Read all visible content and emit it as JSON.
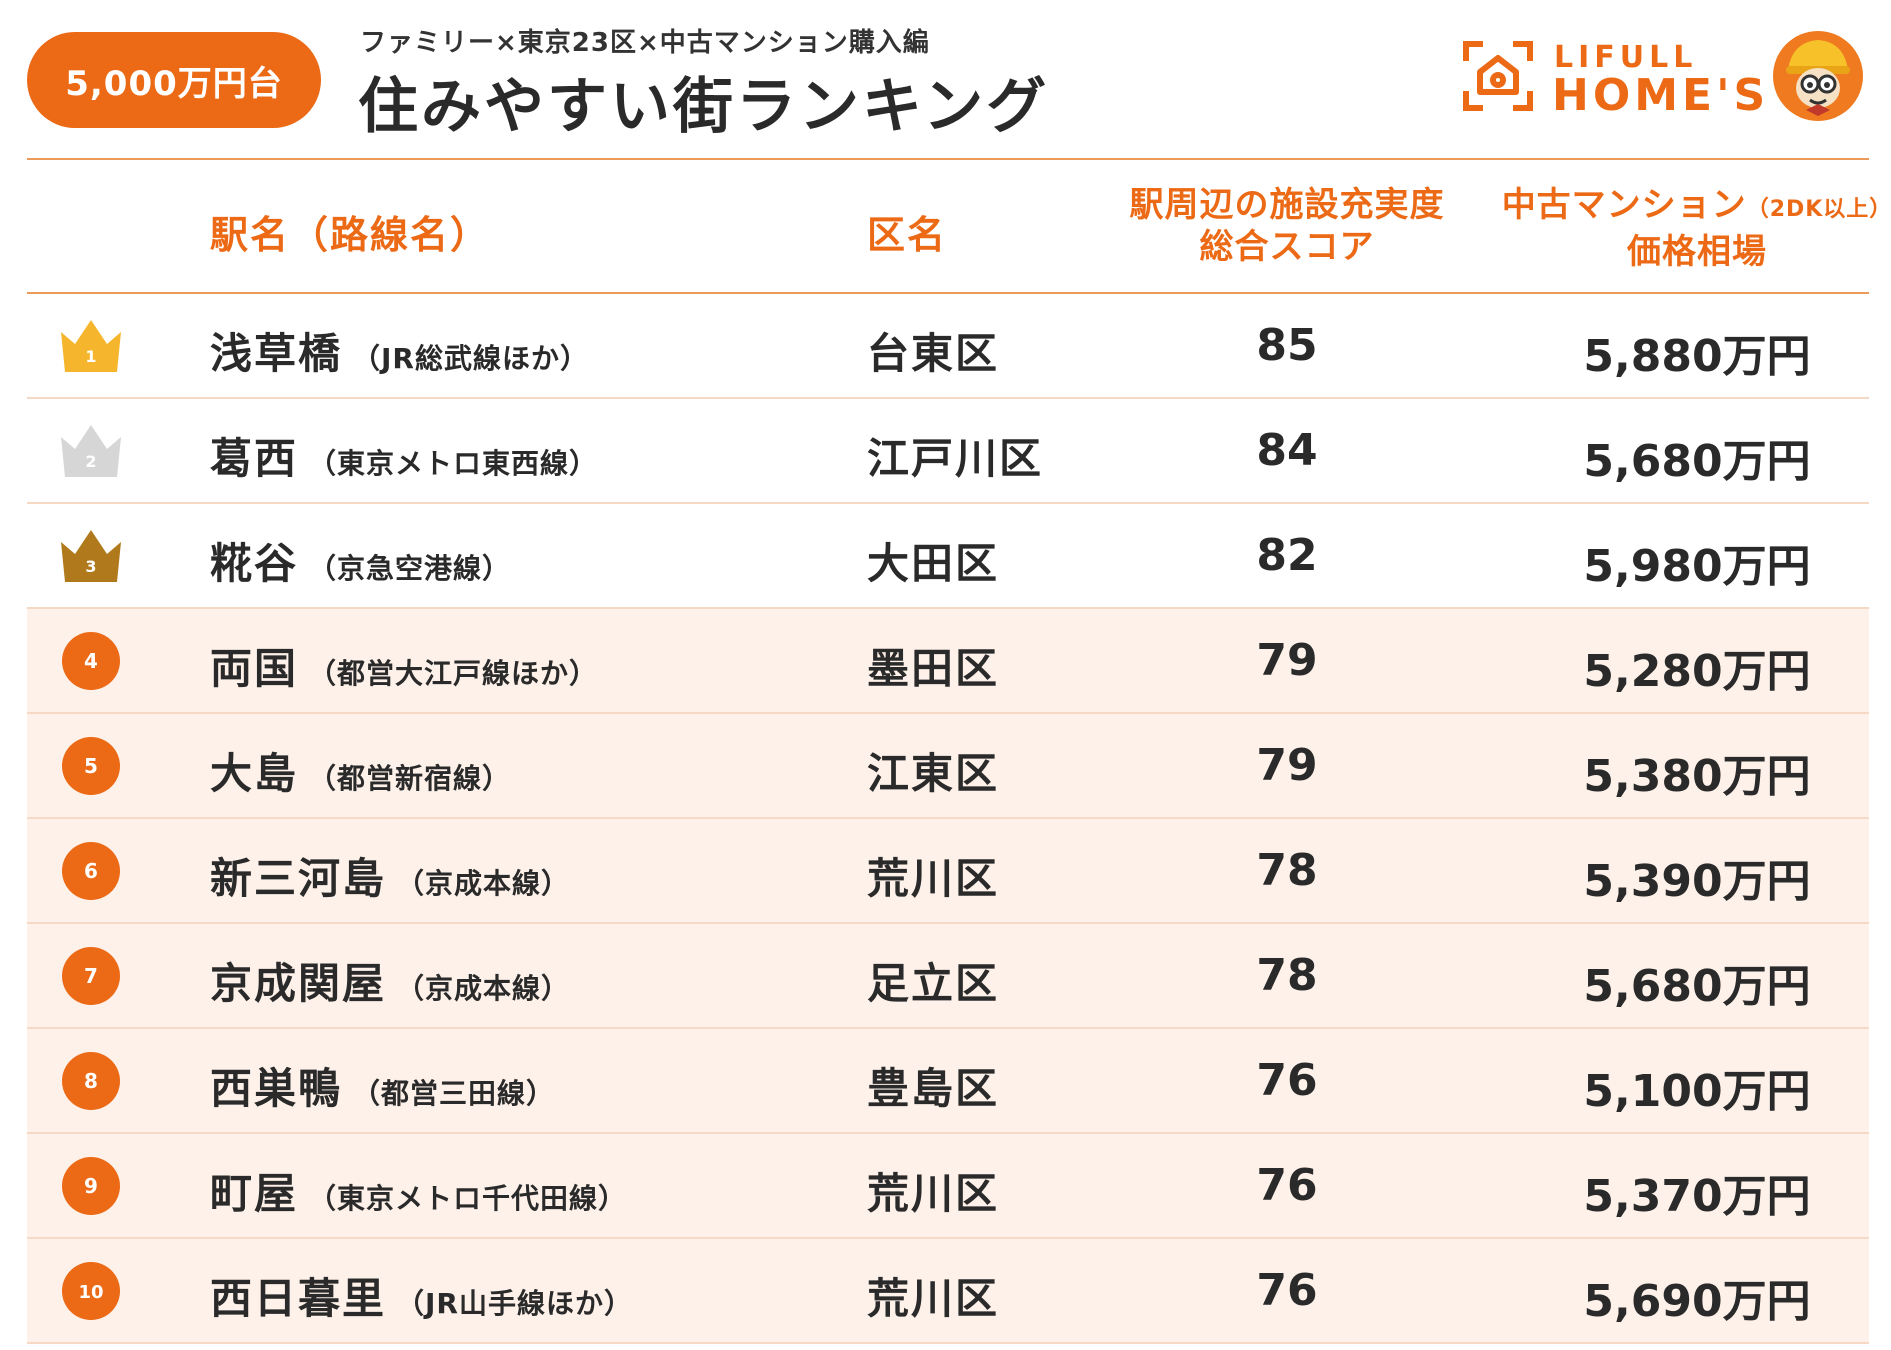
{
  "header": {
    "badge": "5,000万円台",
    "subtitle": "ファミリー×東京23区×中古マンション購入編",
    "title": "住みやすい街ランキング",
    "logo_line1": "LIFULL",
    "logo_line2": "HOME'S"
  },
  "columns": {
    "station": "駅名（路線名）",
    "ward": "区名",
    "score_line1": "駅周辺の施設充実度",
    "score_line2": "総合スコア",
    "price_line1": "中古マンション",
    "price_note": "（2DK以上）",
    "price_line2": "価格相場"
  },
  "colors": {
    "accent": "#ec6a16",
    "gold": "#f5b62d",
    "silver": "#d6d6d6",
    "bronze": "#b07a1c",
    "row_tint": "#fdf1ea"
  },
  "rows": [
    {
      "rank": "1",
      "station": "浅草橋",
      "line": "（JR総武線ほか）",
      "ward": "台東区",
      "score": "85",
      "price": "5,880万円"
    },
    {
      "rank": "2",
      "station": "葛西",
      "line": "（東京メトロ東西線）",
      "ward": "江戸川区",
      "score": "84",
      "price": "5,680万円"
    },
    {
      "rank": "3",
      "station": "糀谷",
      "line": "（京急空港線）",
      "ward": "大田区",
      "score": "82",
      "price": "5,980万円"
    },
    {
      "rank": "4",
      "station": "両国",
      "line": "（都営大江戸線ほか）",
      "ward": "墨田区",
      "score": "79",
      "price": "5,280万円"
    },
    {
      "rank": "5",
      "station": "大島",
      "line": "（都営新宿線）",
      "ward": "江東区",
      "score": "79",
      "price": "5,380万円"
    },
    {
      "rank": "6",
      "station": "新三河島",
      "line": "（京成本線）",
      "ward": "荒川区",
      "score": "78",
      "price": "5,390万円"
    },
    {
      "rank": "7",
      "station": "京成関屋",
      "line": "（京成本線）",
      "ward": "足立区",
      "score": "78",
      "price": "5,680万円"
    },
    {
      "rank": "8",
      "station": "西巣鴨",
      "line": "（都営三田線）",
      "ward": "豊島区",
      "score": "76",
      "price": "5,100万円"
    },
    {
      "rank": "9",
      "station": "町屋",
      "line": "（東京メトロ千代田線）",
      "ward": "荒川区",
      "score": "76",
      "price": "5,370万円"
    },
    {
      "rank": "10",
      "station": "西日暮里",
      "line": "（JR山手線ほか）",
      "ward": "荒川区",
      "score": "76",
      "price": "5,690万円"
    }
  ]
}
